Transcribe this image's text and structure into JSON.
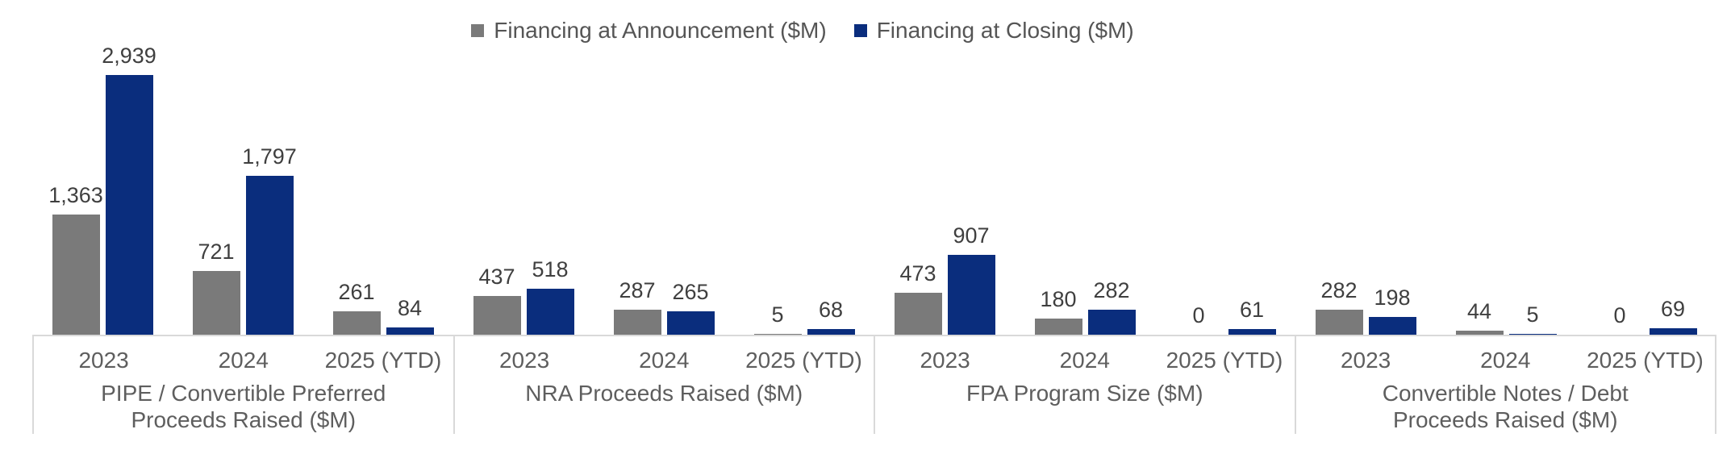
{
  "legend": {
    "items": [
      {
        "label": "Financing at Announcement ($M)",
        "color": "#7a7a7a"
      },
      {
        "label": "Financing at Closing ($M)",
        "color": "#0a2d7d"
      }
    ]
  },
  "chart_data": {
    "type": "bar",
    "title": "",
    "xlabel": "",
    "ylabel": "",
    "ylim": [
      0,
      3000
    ],
    "grid": false,
    "axis_shown": false,
    "legend_position": "top-center",
    "value_label_format": "thousands-comma",
    "categories": [
      "2023",
      "2024",
      "2025 (YTD)"
    ],
    "series": [
      {
        "name": "Financing at Announcement ($M)",
        "key": "announcement",
        "color": "#7a7a7a"
      },
      {
        "name": "Financing at Closing ($M)",
        "key": "closing",
        "color": "#0a2d7d"
      }
    ],
    "groups": [
      {
        "title_lines": [
          "PIPE / Convertible Preferred",
          "Proceeds Raised ($M)"
        ],
        "values": {
          "announcement": [
            1363,
            721,
            261
          ],
          "closing": [
            2939,
            1797,
            84
          ]
        }
      },
      {
        "title_lines": [
          "NRA Proceeds Raised ($M)"
        ],
        "values": {
          "announcement": [
            437,
            287,
            5
          ],
          "closing": [
            518,
            265,
            68
          ]
        }
      },
      {
        "title_lines": [
          "FPA Program Size ($M)"
        ],
        "values": {
          "announcement": [
            473,
            180,
            0
          ],
          "closing": [
            907,
            282,
            61
          ]
        }
      },
      {
        "title_lines": [
          "Convertible Notes / Debt",
          "Proceeds Raised ($M)"
        ],
        "values": {
          "announcement": [
            282,
            44,
            0
          ],
          "closing": [
            198,
            5,
            69
          ]
        }
      }
    ],
    "line_color": "#d9d9d9",
    "value_label_color": "#3f3f3f",
    "tick_label_color": "#5e5e5e"
  }
}
